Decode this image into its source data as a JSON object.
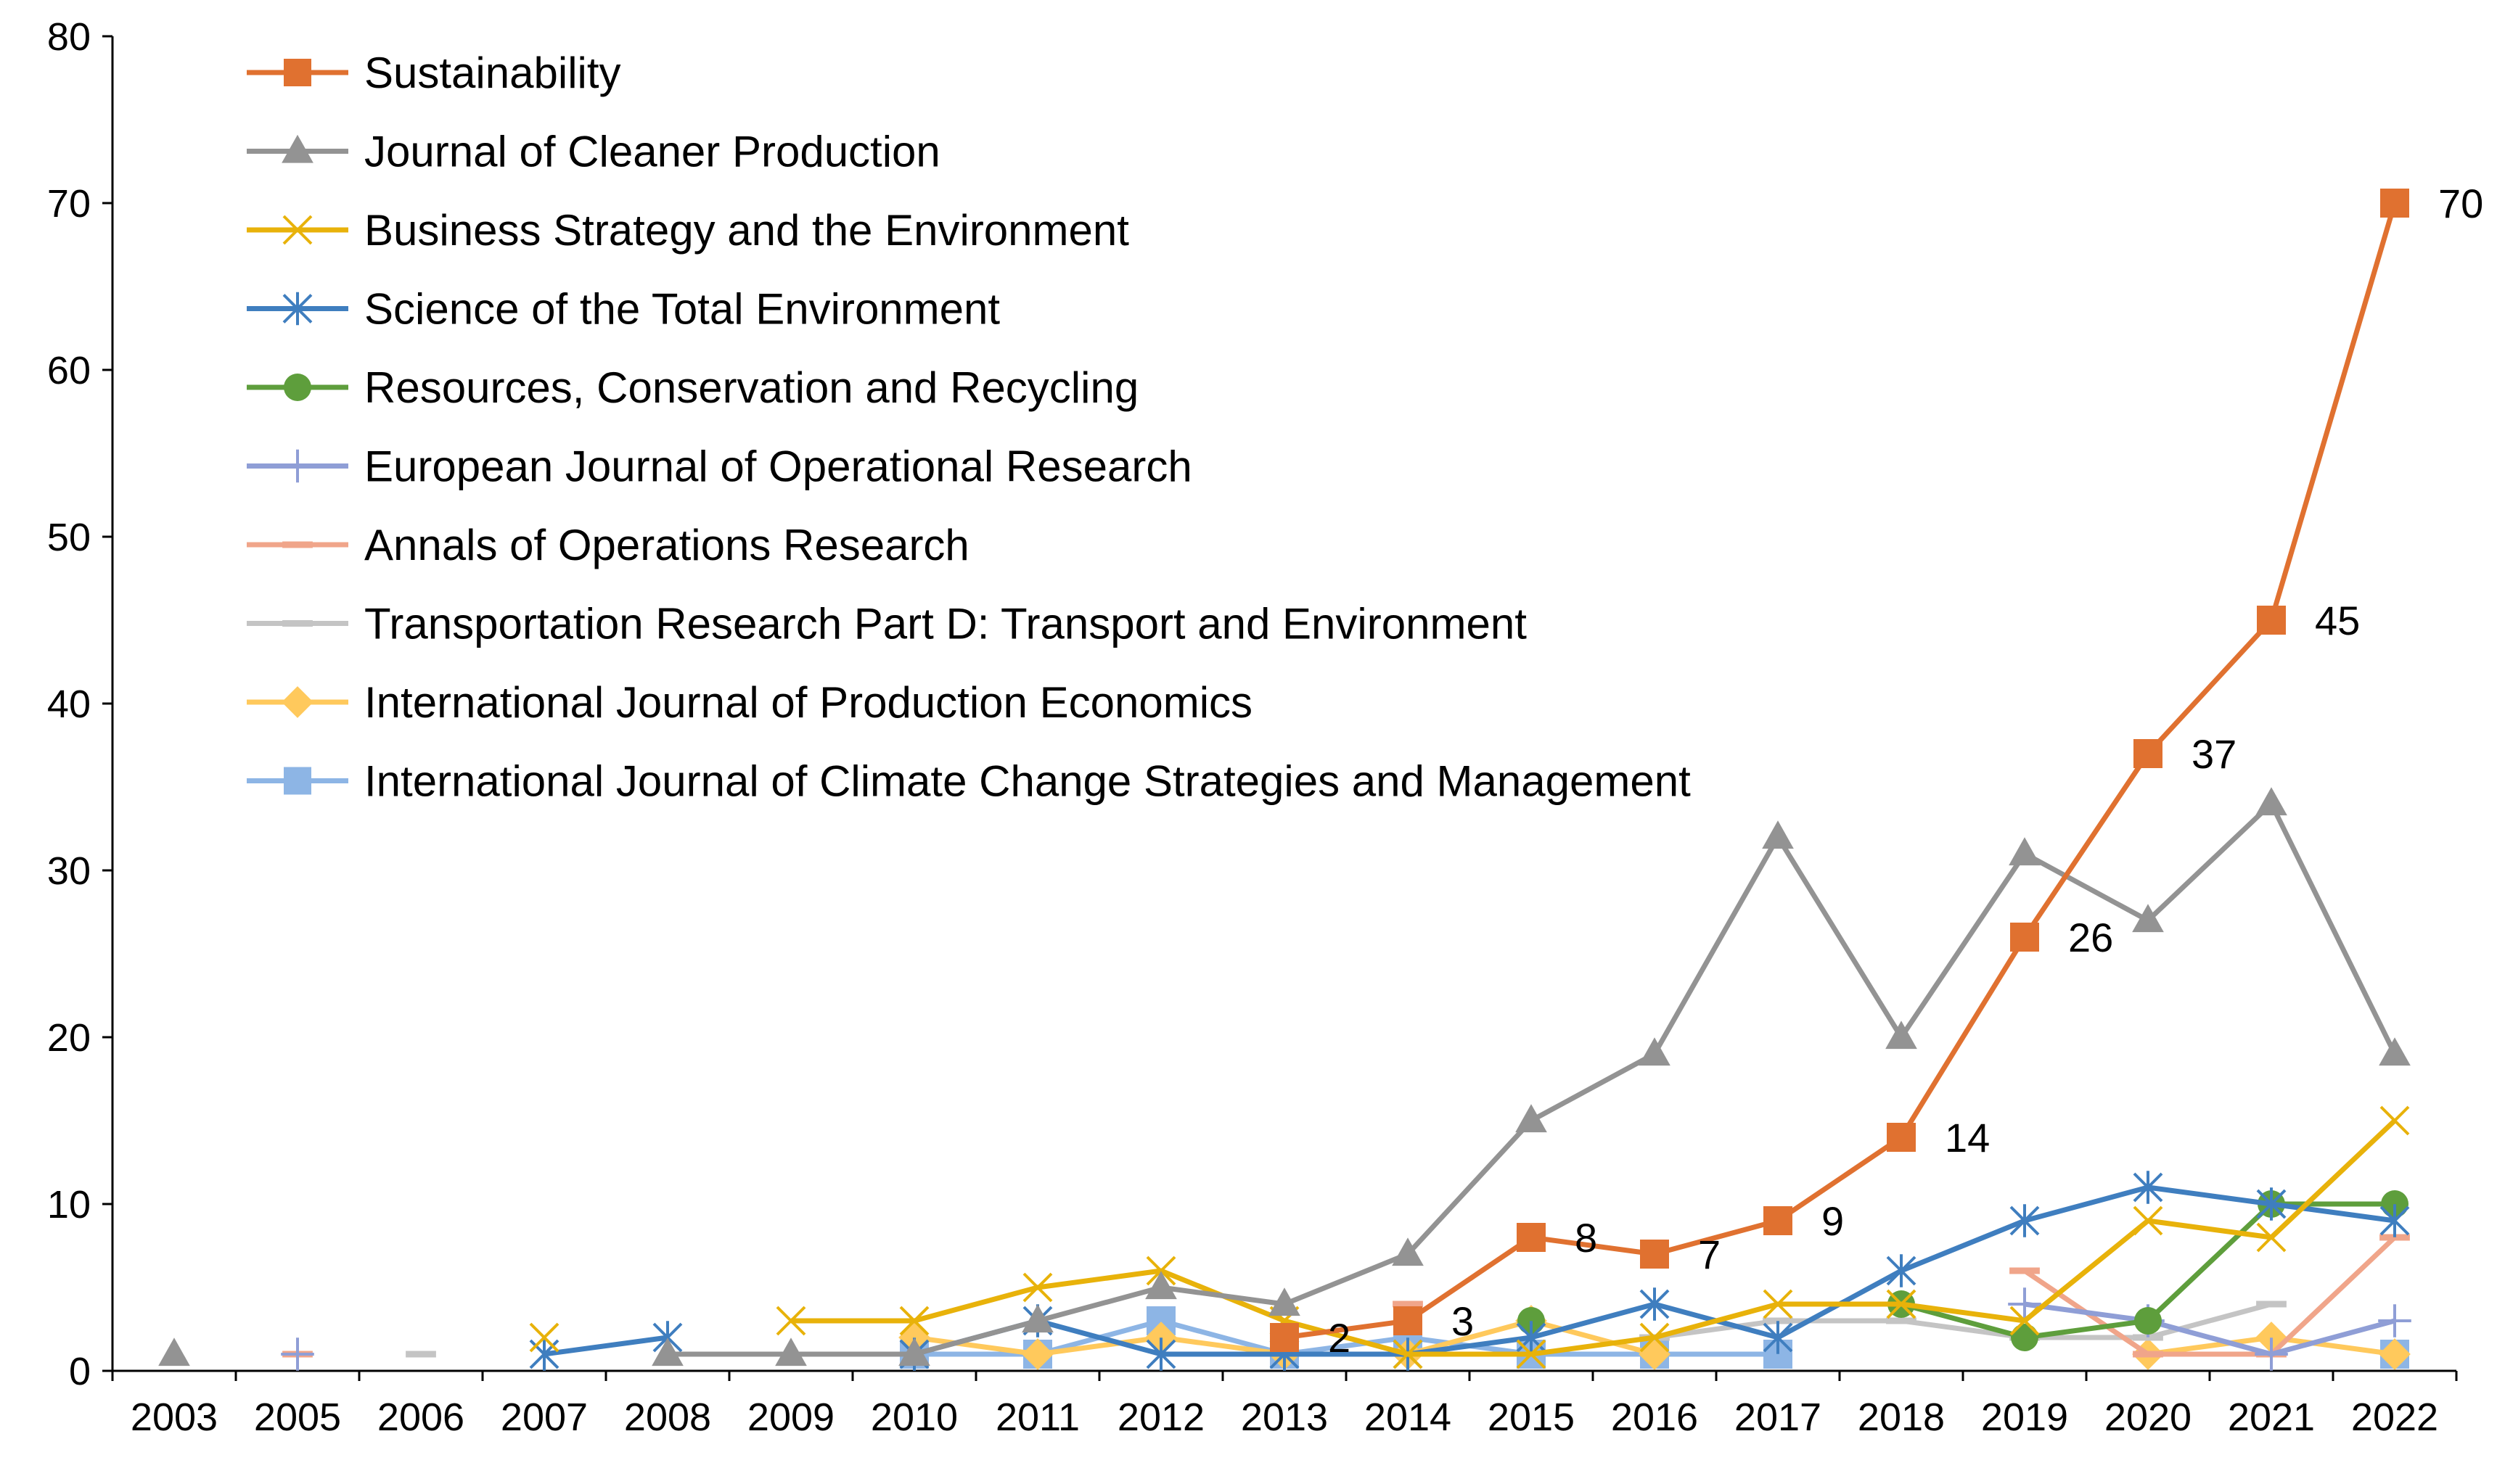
{
  "chart_data": {
    "type": "line",
    "title": "",
    "xlabel": "",
    "ylabel": "",
    "ylim": [
      0,
      80
    ],
    "yticks": [
      0,
      10,
      20,
      30,
      40,
      50,
      60,
      70,
      80
    ],
    "grid": false,
    "legend_position": "top-left",
    "categories": [
      "2003",
      "2005",
      "2006",
      "2007",
      "2008",
      "2009",
      "2010",
      "2011",
      "2012",
      "2013",
      "2014",
      "2015",
      "2016",
      "2017",
      "2018",
      "2019",
      "2020",
      "2021",
      "2022"
    ],
    "series": [
      {
        "name": "Sustainability",
        "color": "#E07130",
        "marker": "square",
        "values": [
          null,
          null,
          null,
          null,
          null,
          null,
          null,
          null,
          null,
          2,
          3,
          8,
          7,
          9,
          14,
          26,
          37,
          45,
          70
        ],
        "labels": [
          null,
          null,
          null,
          null,
          null,
          null,
          null,
          null,
          null,
          "2",
          "3",
          "8",
          "7",
          "9",
          "14",
          "26",
          "37",
          "45",
          "70"
        ]
      },
      {
        "name": "Journal of Cleaner Production",
        "color": "#939393",
        "marker": "triangle",
        "values": [
          1,
          null,
          null,
          null,
          1,
          1,
          1,
          3,
          5,
          4,
          7,
          15,
          19,
          32,
          20,
          31,
          27,
          34,
          19
        ]
      },
      {
        "name": "Business Strategy and the Environment",
        "color": "#E8B20A",
        "marker": "x",
        "values": [
          null,
          null,
          null,
          2,
          null,
          3,
          3,
          5,
          6,
          3,
          1,
          1,
          2,
          4,
          4,
          3,
          9,
          8,
          15
        ]
      },
      {
        "name": "Science of the Total Environment",
        "color": "#3F7EBF",
        "marker": "star",
        "values": [
          null,
          null,
          null,
          1,
          2,
          null,
          1,
          3,
          1,
          1,
          1,
          2,
          4,
          2,
          6,
          9,
          11,
          10,
          9
        ]
      },
      {
        "name": "Resources, Conservation and Recycling",
        "color": "#5E9E3C",
        "marker": "circle",
        "values": [
          null,
          null,
          null,
          null,
          null,
          null,
          null,
          null,
          null,
          null,
          null,
          3,
          null,
          null,
          4,
          2,
          3,
          10,
          10
        ]
      },
      {
        "name": "European Journal of Operational Research",
        "color": "#8F9ED6",
        "marker": "plus",
        "values": [
          null,
          1,
          null,
          null,
          null,
          null,
          null,
          null,
          null,
          null,
          null,
          null,
          null,
          null,
          null,
          4,
          3,
          1,
          3
        ]
      },
      {
        "name": "Annals of Operations Research",
        "color": "#F0A58A",
        "marker": "dash",
        "values": [
          null,
          1,
          null,
          null,
          null,
          null,
          null,
          null,
          null,
          null,
          4,
          null,
          null,
          null,
          null,
          6,
          1,
          1,
          8
        ]
      },
      {
        "name": "Transportation Research Part D: Transport and Environment",
        "color": "#C4C4C4",
        "marker": "dash",
        "values": [
          null,
          null,
          1,
          null,
          null,
          null,
          null,
          null,
          null,
          null,
          null,
          null,
          2,
          3,
          3,
          2,
          2,
          4,
          null
        ]
      },
      {
        "name": "International Journal of Production Economics",
        "color": "#FFC95C",
        "marker": "diamond",
        "values": [
          null,
          null,
          null,
          null,
          null,
          null,
          2,
          1,
          2,
          1,
          1,
          3,
          1,
          null,
          null,
          null,
          1,
          2,
          1
        ]
      },
      {
        "name": "International Journal of Climate Change Strategies and Management",
        "color": "#8DB5E5",
        "marker": "square",
        "values": [
          null,
          null,
          null,
          null,
          null,
          null,
          1,
          1,
          3,
          1,
          2,
          1,
          1,
          1,
          null,
          null,
          null,
          null,
          1
        ]
      }
    ]
  }
}
